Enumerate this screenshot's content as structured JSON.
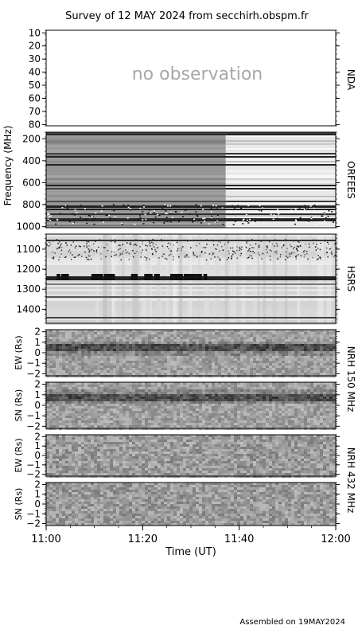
{
  "title": "Survey of 12 MAY 2024 from secchirh.obspm.fr",
  "footer": "Assembled on 19MAY2024",
  "x_axis": {
    "label": "Time (UT)",
    "ticks": [
      "11:00",
      "11:20",
      "11:40",
      "12:00"
    ],
    "range_minutes": [
      0,
      60
    ]
  },
  "freq_axis_label": "Frequency (MHz)",
  "panels": [
    {
      "id": "nda",
      "instrument": "NDA",
      "ticks": [
        "10",
        "20",
        "30",
        "40",
        "50",
        "60",
        "70",
        "80"
      ],
      "ylim": [
        8,
        81
      ],
      "message": "no observation"
    },
    {
      "id": "orfees",
      "instrument": "ORFEES",
      "ticks": [
        "200",
        "400",
        "600",
        "800",
        "1000"
      ],
      "ylim": [
        140,
        1010
      ]
    },
    {
      "id": "hsrs",
      "instrument": "HSRS",
      "ticks": [
        "1100",
        "1200",
        "1300",
        "1400"
      ],
      "ylim": [
        1025,
        1470
      ]
    },
    {
      "id": "nrh150ew",
      "ylabel": "EW (Rs)",
      "ticks": [
        "2",
        "1",
        "0",
        "−1",
        "−2"
      ],
      "ylim": [
        -2.2,
        2.2
      ]
    },
    {
      "id": "nrh150sn",
      "ylabel": "SN (Rs)",
      "ticks": [
        "2",
        "1",
        "0",
        "−1",
        "−2"
      ],
      "ylim": [
        -2.2,
        2.2
      ]
    },
    {
      "id": "nrh432ew",
      "ylabel": "EW (Rs)",
      "ticks": [
        "2",
        "1",
        "0",
        "−1",
        "−2"
      ],
      "ylim": [
        -2.2,
        2.2
      ]
    },
    {
      "id": "nrh432sn",
      "ylabel": "SN (Rs)",
      "ticks": [
        "2",
        "1",
        "0",
        "−1",
        "−2"
      ],
      "ylim": [
        -2.2,
        2.2
      ]
    }
  ],
  "nrh_groups": [
    {
      "label": "NRH 150 MHz"
    },
    {
      "label": "NRH 432 MHz"
    }
  ],
  "chart_data": {
    "type": "heatmap",
    "title": "Survey of 12 MAY 2024 from secchirh.obspm.fr",
    "xlabel": "Time (UT)",
    "ylabel": "Frequency (MHz)",
    "x_ticks": [
      "11:00",
      "11:20",
      "11:40",
      "12:00"
    ],
    "panels": [
      "NDA",
      "ORFEES",
      "HSRS",
      "NRH 150 MHz EW",
      "NRH 150 MHz SN",
      "NRH 432 MHz EW",
      "NRH 432 MHz SN"
    ],
    "colormap": "grayscale"
  }
}
